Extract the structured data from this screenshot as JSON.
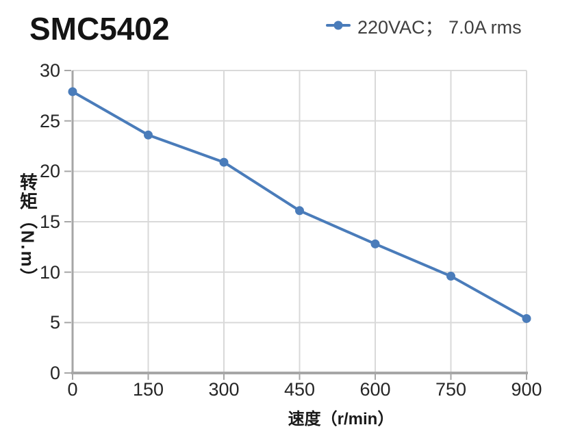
{
  "chart_data": {
    "type": "line",
    "title": "SMC5402",
    "xlabel": "速度（r/min）",
    "ylabel": "转矩（N.m）",
    "xlim": [
      0,
      900
    ],
    "ylim": [
      0,
      30
    ],
    "x_ticks": [
      0,
      150,
      300,
      450,
      600,
      750,
      900
    ],
    "y_ticks": [
      0,
      5,
      10,
      15,
      20,
      25,
      30
    ],
    "grid": true,
    "legend_position": "top-right",
    "series": [
      {
        "name": "220VAC； 7.0A rms",
        "color": "#4a7cba",
        "marker": "circle",
        "x": [
          0,
          150,
          300,
          450,
          600,
          750,
          900
        ],
        "values": [
          27.9,
          23.6,
          20.9,
          16.1,
          12.8,
          9.6,
          5.4
        ]
      }
    ],
    "colors": {
      "line": "#4a7cba",
      "grid": "#d9d9d9",
      "axis": "#a6a6a6",
      "tick_text": "#262626",
      "title_text": "#141414"
    }
  }
}
